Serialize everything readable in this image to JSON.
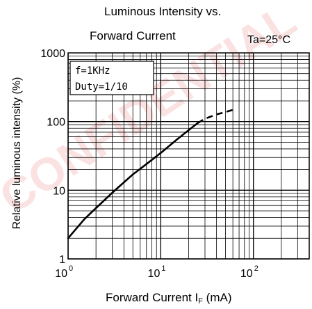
{
  "chart_data": {
    "type": "line",
    "title": [
      "Luminous Intensity vs.",
      "Forward Current"
    ],
    "condition": "Ta=25°C",
    "xlabel": {
      "main": "Forward Current  I",
      "sub": "F",
      "unit": " (mA)"
    },
    "ylabel": "Relative luminous intensity (%)",
    "x_scale": "log",
    "y_scale": "log",
    "xlim": [
      1,
      400
    ],
    "ylim": [
      1,
      1000
    ],
    "x_ticks": [
      {
        "base": "10",
        "exp": "0",
        "value": 1
      },
      {
        "base": "10",
        "exp": "1",
        "value": 10
      },
      {
        "base": "10",
        "exp": "2",
        "value": 100
      }
    ],
    "y_ticks": [
      {
        "label": "1",
        "value": 1
      },
      {
        "label": "10",
        "value": 10
      },
      {
        "label": "100",
        "value": 100
      },
      {
        "label": "1000",
        "value": 1000
      }
    ],
    "grid": true,
    "legend_lines": [
      "f=1KHz",
      "Duty=1/10"
    ],
    "watermark_text": "CONFIDENTIAL",
    "watermark_color": "#e03030",
    "series": [
      {
        "style": "solid",
        "x": [
          1,
          1.5,
          2,
          3,
          5,
          7,
          10,
          15,
          20,
          25
        ],
        "y": [
          2,
          3.8,
          5.5,
          9.2,
          17,
          24,
          35,
          55,
          75,
          95
        ]
      },
      {
        "style": "dashed",
        "x": [
          25,
          30,
          40,
          50,
          60
        ],
        "y": [
          95,
          110,
          127,
          138,
          148
        ]
      }
    ]
  }
}
